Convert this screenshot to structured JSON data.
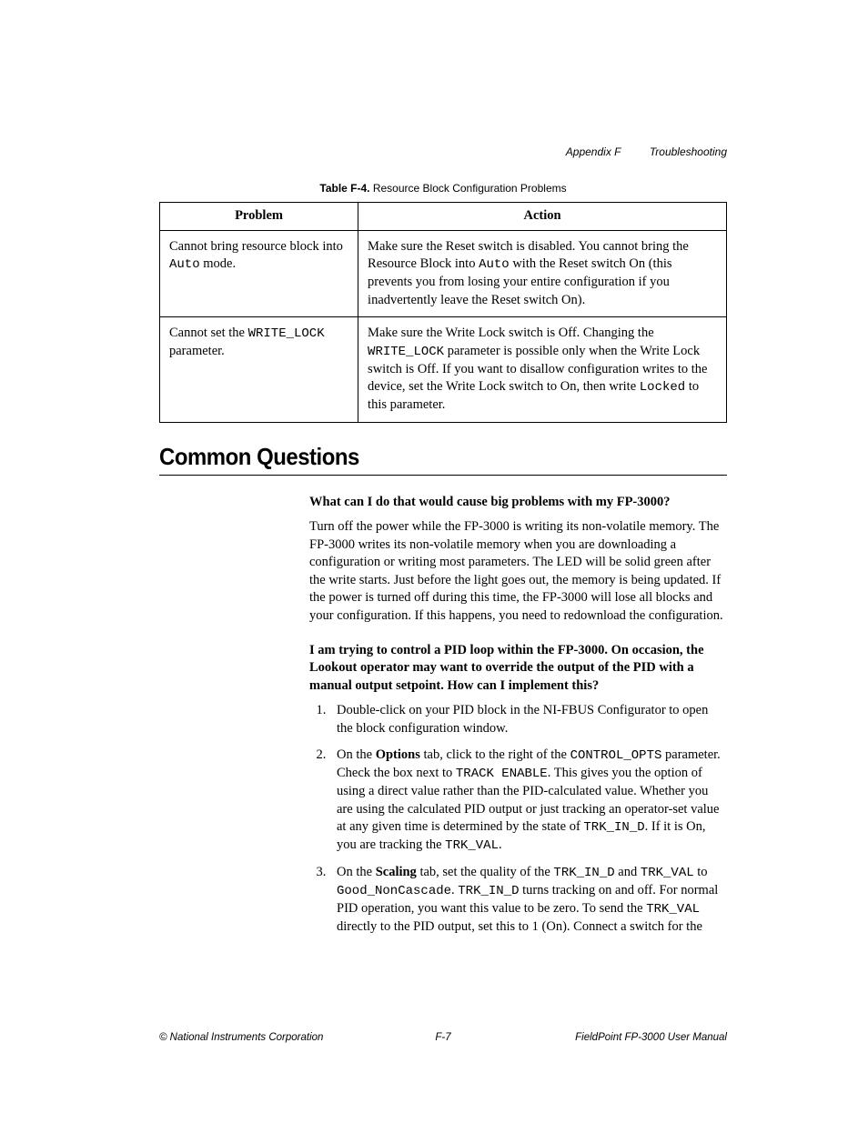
{
  "header": {
    "appendix": "Appendix F",
    "title": "Troubleshooting"
  },
  "table": {
    "caption_label": "Table F-4.",
    "caption_text": "Resource Block Configuration Problems",
    "columns": [
      "Problem",
      "Action"
    ],
    "rows": [
      {
        "problem_pre": "Cannot bring resource block into ",
        "problem_code": "Auto",
        "problem_post": " mode.",
        "action_pre": "Make sure the Reset switch is disabled. You cannot bring the Resource Block into ",
        "action_code": "Auto",
        "action_post": " with the Reset switch On (this prevents you from losing your entire configuration if you inadvertently leave the Reset switch On)."
      },
      {
        "problem_pre": "Cannot set the ",
        "problem_code": "WRITE_LOCK",
        "problem_post": " parameter.",
        "action_pre": "Make sure the Write Lock switch is Off. Changing the ",
        "action_code": "WRITE_LOCK",
        "action_mid": " parameter is possible only when the Write Lock switch is Off. If you want to disallow configuration writes to the device, set the Write Lock switch to On, then write ",
        "action_code2": "Locked",
        "action_post": " to this parameter."
      }
    ]
  },
  "section_heading": "Common Questions",
  "qa": {
    "q1": "What can I do that would cause big problems with my FP-3000?",
    "a1": "Turn off the power while the FP-3000 is writing its non-volatile memory. The FP-3000 writes its non-volatile memory when you are downloading a configuration or writing most parameters. The LED will be solid green after the write starts. Just before the light goes out, the memory is being updated. If the power is turned off during this time, the FP-3000 will lose all blocks and your configuration. If this happens, you need to redownload the configuration.",
    "q2": "I am trying to control a PID loop within the FP-3000. On occasion, the Lookout operator may want to override the output of the PID with a manual output setpoint. How can I implement this?",
    "steps": {
      "s1": "Double-click on your PID block in the NI-FBUS Configurator to open the block configuration window.",
      "s2_a": "On the ",
      "s2_b": "Options",
      "s2_c": " tab, click to the right of the ",
      "s2_code1": "CONTROL_OPTS",
      "s2_d": " parameter. Check the box next to ",
      "s2_code2": "TRACK ENABLE",
      "s2_e": ". This gives you the option of using a direct value rather than the PID-calculated value. Whether you are using the calculated PID output or just tracking an operator-set value at any given time is determined by the state of ",
      "s2_code3": "TRK_IN_D",
      "s2_f": ". If it is On, you are tracking the ",
      "s2_code4": "TRK_VAL",
      "s2_g": ".",
      "s3_a": "On the ",
      "s3_b": "Scaling",
      "s3_c": " tab, set the quality of the ",
      "s3_code1": "TRK_IN_D",
      "s3_d": " and ",
      "s3_code2": "TRK_VAL",
      "s3_e": " to ",
      "s3_code3": "Good_NonCascade",
      "s3_f": ". ",
      "s3_code4": "TRK_IN_D",
      "s3_g": " turns tracking on and off. For normal PID operation, you want this value to be zero. To send the ",
      "s3_code5": "TRK_VAL",
      "s3_h": " directly to the PID output, set this to 1 (On). Connect a switch for the"
    }
  },
  "footer": {
    "copyright": "© National Instruments Corporation",
    "page": "F-7",
    "manual": "FieldPoint FP-3000 User Manual"
  }
}
